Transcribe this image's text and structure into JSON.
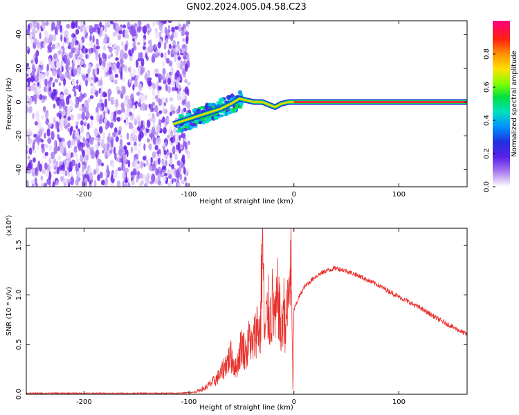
{
  "title": "GN02.2024.005.04.58.C23",
  "colors": {
    "snr_line": "#e8302c",
    "background": "#ffffff",
    "axis": "#000000",
    "colormap": [
      "#ffffff",
      "#c8a8f0",
      "#7a2df0",
      "#2020e0",
      "#00c8ff",
      "#00e060",
      "#60ff00",
      "#ffe000",
      "#ff8000",
      "#ff1010",
      "#ff0080"
    ]
  },
  "chart_data": [
    {
      "type": "heatmap",
      "name": "spectrogram",
      "title": "GN02.2024.005.04.58.C23",
      "xlabel": "Height of straight line (km)",
      "ylabel": "Frequency (Hz)",
      "xlim": [
        -255,
        165
      ],
      "ylim": [
        -50,
        48
      ],
      "xticks": [
        -200,
        -100,
        0,
        100
      ],
      "yticks": [
        -40,
        -20,
        0,
        20,
        40
      ],
      "colorbar": {
        "label": "Normalized spectral amplitude",
        "range": [
          0.0,
          1.0
        ],
        "ticks": [
          "0.0",
          "0.2",
          "0.4",
          "0.6",
          "0.8"
        ]
      },
      "regions": [
        {
          "description": "broadband noise",
          "x_range": [
            -255,
            -100
          ],
          "freq_range": [
            -50,
            48
          ],
          "amplitude": 0.25
        },
        {
          "description": "transition energy",
          "x_range": [
            -110,
            -50
          ],
          "freq_range": [
            -20,
            5
          ],
          "amplitude": 0.45
        },
        {
          "description": "narrow ridge near 0 Hz",
          "x_range": [
            -50,
            165
          ],
          "freq_range": [
            -1,
            1
          ],
          "amplitude": 0.95
        }
      ],
      "ridge": {
        "x": [
          -115,
          -100,
          -90,
          -80,
          -70,
          -60,
          -52,
          -45,
          -38,
          -30,
          -22,
          -18,
          -12,
          -5,
          0,
          165
        ],
        "y": [
          -13,
          -10,
          -8,
          -6,
          -4,
          -1,
          2,
          1,
          0,
          0,
          -2,
          -3,
          -1,
          0,
          0,
          0
        ]
      }
    },
    {
      "type": "line",
      "name": "snr",
      "xlabel": "Height of straight line (km)",
      "ylabel": "SNR (10 * v/v)",
      "multiplier": "(x10⁴)",
      "xlim": [
        -255,
        165
      ],
      "ylim": [
        0,
        1.67
      ],
      "xticks": [
        -200,
        -100,
        0,
        100
      ],
      "yticks": [
        "0.0",
        "0.5",
        "1.0",
        "1.5"
      ],
      "series": [
        {
          "x": [
            -255,
            -200,
            -150,
            -110,
            -95,
            -85,
            -75,
            -70,
            -65,
            -60,
            -55,
            -50,
            -45,
            -42,
            -40,
            -35,
            -32,
            -30,
            -28,
            -25,
            -22,
            -20,
            -18,
            -15,
            -12,
            -10,
            -8,
            -5,
            -3,
            -1,
            0,
            2,
            5,
            10,
            20,
            30,
            40,
            50,
            60,
            80,
            100,
            120,
            140,
            165
          ],
          "y": [
            0.01,
            0.01,
            0.01,
            0.01,
            0.02,
            0.06,
            0.14,
            0.2,
            0.3,
            0.38,
            0.25,
            0.5,
            0.4,
            0.6,
            0.45,
            0.7,
            0.6,
            1.66,
            0.55,
            0.85,
            0.75,
            0.95,
            0.7,
            1.0,
            0.55,
            0.9,
            0.7,
            0.95,
            1.42,
            0.05,
            0.85,
            0.9,
            0.98,
            1.08,
            1.18,
            1.24,
            1.27,
            1.24,
            1.2,
            1.1,
            0.98,
            0.87,
            0.74,
            0.6
          ]
        }
      ]
    }
  ]
}
